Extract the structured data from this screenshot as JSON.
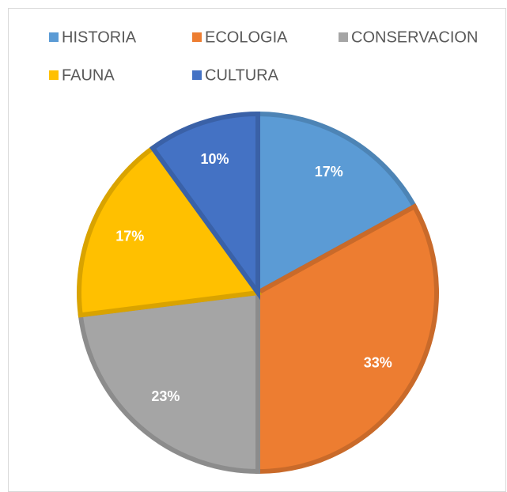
{
  "chart_data": {
    "type": "pie",
    "categories": [
      "HISTORIA",
      "ECOLOGIA",
      "CONSERVACION",
      "FAUNA",
      "CULTURA"
    ],
    "values": [
      17,
      33,
      23,
      17,
      10
    ],
    "value_labels": [
      "17%",
      "33%",
      "23%",
      "17%",
      "10%"
    ],
    "colors": [
      "#5b9bd5",
      "#ed7d31",
      "#a5a5a5",
      "#ffc000",
      "#4472c4"
    ]
  }
}
